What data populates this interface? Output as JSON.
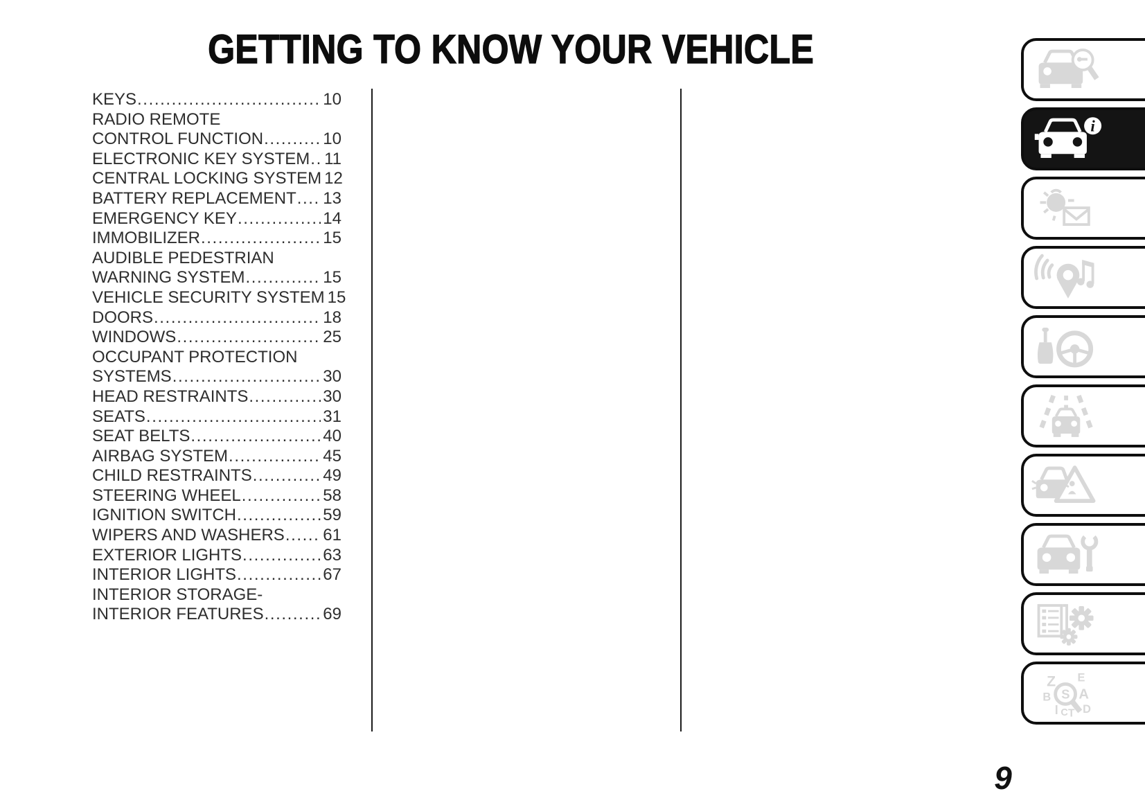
{
  "page": {
    "title": "GETTING TO KNOW YOUR VEHICLE",
    "page_number": "9"
  },
  "toc": {
    "entries": [
      {
        "lines": [
          "KEYS"
        ],
        "page": "10"
      },
      {
        "lines": [
          "RADIO REMOTE",
          "CONTROL FUNCTION"
        ],
        "page": "10"
      },
      {
        "lines": [
          "ELECTRONIC KEY SYSTEM"
        ],
        "page": "11"
      },
      {
        "lines": [
          "CENTRAL LOCKING SYSTEM"
        ],
        "page": "12"
      },
      {
        "lines": [
          "BATTERY REPLACEMENT"
        ],
        "page": "13"
      },
      {
        "lines": [
          "EMERGENCY KEY"
        ],
        "page": "14"
      },
      {
        "lines": [
          "IMMOBILIZER"
        ],
        "page": "15"
      },
      {
        "lines": [
          "AUDIBLE PEDESTRIAN",
          "WARNING SYSTEM"
        ],
        "page": "15"
      },
      {
        "lines": [
          "VEHICLE SECURITY SYSTEM"
        ],
        "page": "15"
      },
      {
        "lines": [
          "DOORS"
        ],
        "page": "18"
      },
      {
        "lines": [
          "WINDOWS"
        ],
        "page": "25"
      },
      {
        "lines": [
          "OCCUPANT PROTECTION",
          "SYSTEMS"
        ],
        "page": "30"
      },
      {
        "lines": [
          "HEAD RESTRAINTS"
        ],
        "page": "30"
      },
      {
        "lines": [
          "SEATS"
        ],
        "page": "31"
      },
      {
        "lines": [
          "SEAT BELTS"
        ],
        "page": "40"
      },
      {
        "lines": [
          "AIRBAG SYSTEM"
        ],
        "page": "45"
      },
      {
        "lines": [
          "CHILD RESTRAINTS"
        ],
        "page": "49"
      },
      {
        "lines": [
          "STEERING WHEEL"
        ],
        "page": "58"
      },
      {
        "lines": [
          "IGNITION SWITCH"
        ],
        "page": "59"
      },
      {
        "lines": [
          "WIPERS AND WASHERS"
        ],
        "page": "61"
      },
      {
        "lines": [
          "EXTERIOR LIGHTS"
        ],
        "page": "63"
      },
      {
        "lines": [
          "INTERIOR LIGHTS"
        ],
        "page": "67"
      },
      {
        "lines": [
          "INTERIOR STORAGE-",
          "INTERIOR FEATURES"
        ],
        "page": "69"
      }
    ]
  },
  "sidebar": {
    "tabs": [
      {
        "icon": "car-search-icon",
        "active": false
      },
      {
        "icon": "car-info-icon",
        "active": true
      },
      {
        "icon": "warning-light-message-icon",
        "active": false
      },
      {
        "icon": "navigation-audio-icon",
        "active": false
      },
      {
        "icon": "gearshift-steering-icon",
        "active": false
      },
      {
        "icon": "lane-driving-icon",
        "active": false
      },
      {
        "icon": "emergency-triangle-icon",
        "active": false
      },
      {
        "icon": "car-service-icon",
        "active": false
      },
      {
        "icon": "technical-data-icon",
        "active": false
      },
      {
        "icon": "index-search-icon",
        "active": false
      }
    ],
    "index_icon_letters": [
      "Z",
      "E",
      "B",
      "A",
      "D",
      "I",
      "C",
      "T",
      "S"
    ]
  },
  "colors": {
    "active_tab_bg": "#141414",
    "inactive_icon": "#d8d8d8",
    "text": "#2e2e2e"
  }
}
